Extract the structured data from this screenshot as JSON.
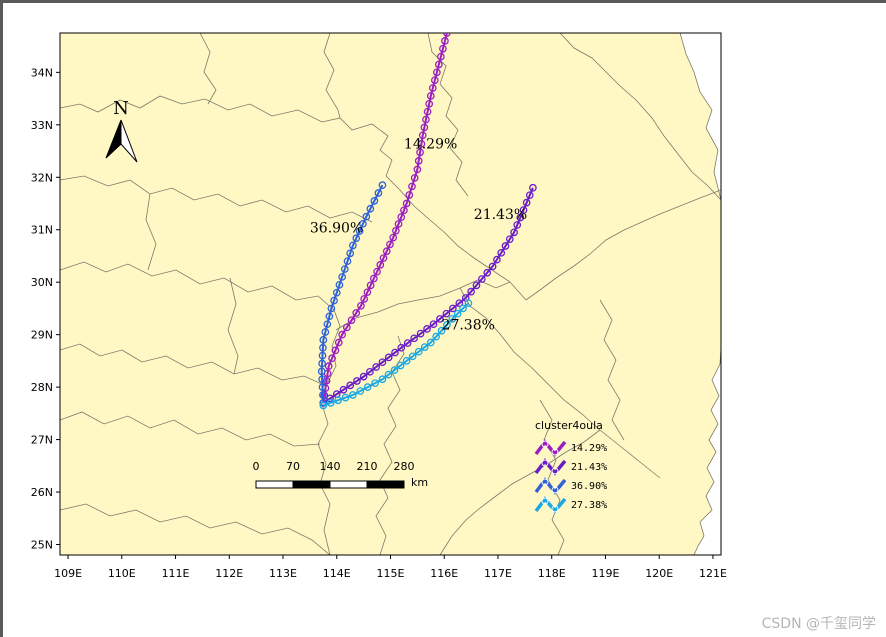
{
  "map": {
    "x_ticks": [
      "109E",
      "110E",
      "111E",
      "112E",
      "113E",
      "114E",
      "115E",
      "116E",
      "117E",
      "118E",
      "119E",
      "120E",
      "121E"
    ],
    "x_tick_lons": [
      109,
      110,
      111,
      112,
      113,
      114,
      115,
      116,
      117,
      118,
      119,
      120,
      121
    ],
    "y_ticks": [
      "25N",
      "26N",
      "27N",
      "28N",
      "29N",
      "30N",
      "31N",
      "32N",
      "33N",
      "34N"
    ],
    "y_tick_lats": [
      25,
      26,
      27,
      28,
      29,
      30,
      31,
      32,
      33,
      34
    ],
    "lon_range": [
      108.85,
      121.15
    ],
    "lat_range": [
      24.8,
      34.75
    ],
    "land_color": "#fff8c4",
    "sea_color": "#ffffff",
    "border_color": "#7a7a6a"
  },
  "north_arrow": {
    "label": "N"
  },
  "scale_bar": {
    "ticks": [
      "0",
      "70",
      "140",
      "210",
      "280"
    ],
    "unit": "km"
  },
  "legend": {
    "title": "cluster4oula",
    "items": [
      {
        "label": "14.29%",
        "color": "#9b1fc0"
      },
      {
        "label": "21.43%",
        "color": "#6a1ec8"
      },
      {
        "label": "36.90%",
        "color": "#2f62d8"
      },
      {
        "label": "27.38%",
        "color": "#1aa8e6"
      }
    ]
  },
  "chart_data": {
    "type": "trajectory-map",
    "clusters": [
      {
        "label": "14.29%",
        "color": "#9b1fc0",
        "points": [
          [
            113.75,
            27.7
          ],
          [
            113.85,
            28.4
          ],
          [
            114.1,
            29.0
          ],
          [
            114.45,
            29.55
          ],
          [
            114.75,
            30.2
          ],
          [
            115.05,
            30.85
          ],
          [
            115.3,
            31.5
          ],
          [
            115.5,
            32.15
          ],
          [
            115.6,
            32.8
          ],
          [
            115.75,
            33.55
          ],
          [
            115.9,
            34.15
          ],
          [
            116.05,
            34.75
          ]
        ]
      },
      {
        "label": "21.43%",
        "color": "#6a1ec8",
        "points": [
          [
            113.75,
            27.7
          ],
          [
            114.5,
            28.2
          ],
          [
            115.2,
            28.75
          ],
          [
            115.8,
            29.2
          ],
          [
            116.4,
            29.7
          ],
          [
            116.9,
            30.3
          ],
          [
            117.3,
            30.95
          ],
          [
            117.65,
            31.8
          ]
        ]
      },
      {
        "label": "36.90%",
        "color": "#2f62d8",
        "points": [
          [
            113.75,
            27.7
          ],
          [
            113.72,
            28.3
          ],
          [
            113.75,
            28.9
          ],
          [
            113.9,
            29.5
          ],
          [
            114.1,
            30.1
          ],
          [
            114.3,
            30.7
          ],
          [
            114.55,
            31.25
          ],
          [
            114.85,
            31.85
          ]
        ]
      },
      {
        "label": "27.38%",
        "color": "#1aa8e6",
        "points": [
          [
            113.75,
            27.65
          ],
          [
            114.3,
            27.85
          ],
          [
            114.85,
            28.15
          ],
          [
            115.3,
            28.5
          ],
          [
            115.75,
            28.85
          ],
          [
            116.15,
            29.3
          ],
          [
            116.45,
            29.6
          ]
        ]
      }
    ],
    "annotations": [
      {
        "text": "14.29%",
        "lon": 115.25,
        "lat": 32.55
      },
      {
        "text": "21.43%",
        "lon": 116.55,
        "lat": 31.2
      },
      {
        "text": "36.90%",
        "lon": 113.5,
        "lat": 30.95
      },
      {
        "text": "27.38%",
        "lon": 115.95,
        "lat": 29.1
      }
    ],
    "xlim": [
      108.85,
      121.15
    ],
    "ylim": [
      24.8,
      34.75
    ]
  },
  "watermark": "CSDN @千玺同学"
}
